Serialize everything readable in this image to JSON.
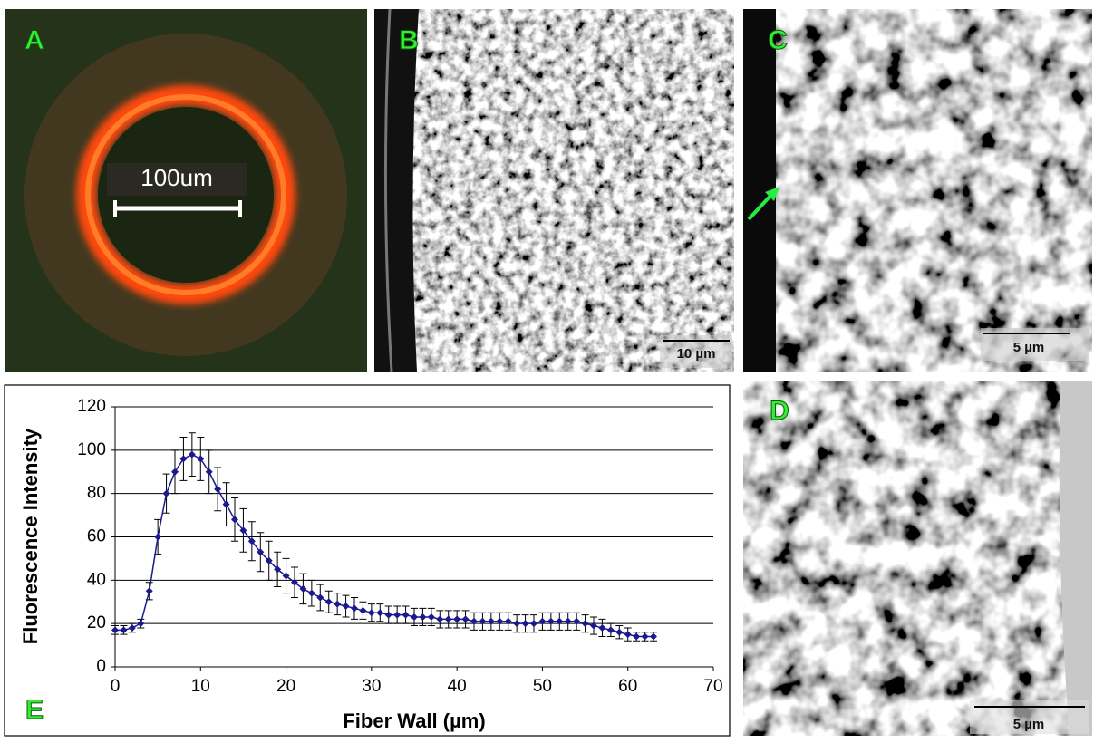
{
  "panels": [
    {
      "label": "A",
      "scale_bar": "100um"
    },
    {
      "label": "B",
      "scale_bar": "10 µm"
    },
    {
      "label": "C",
      "scale_bar": "5 µm"
    },
    {
      "label": "D",
      "scale_bar": "5 µm"
    }
  ],
  "chart_data": {
    "type": "line",
    "panel_label": "E",
    "x_label": "Fiber Wall (µm)",
    "y_label": "Fluorescence Intensity",
    "x": [
      0,
      1,
      2,
      3,
      4,
      5,
      6,
      7,
      8,
      9,
      10,
      11,
      12,
      13,
      14,
      15,
      16,
      17,
      18,
      19,
      20,
      21,
      22,
      23,
      24,
      25,
      26,
      27,
      28,
      29,
      30,
      31,
      32,
      33,
      34,
      35,
      36,
      37,
      38,
      39,
      40,
      41,
      42,
      43,
      44,
      45,
      46,
      47,
      48,
      49,
      50,
      51,
      52,
      53,
      54,
      55,
      56,
      57,
      58,
      59,
      60,
      61,
      62,
      63
    ],
    "values": [
      17,
      17,
      18,
      20,
      35,
      60,
      80,
      90,
      96,
      98,
      96,
      90,
      82,
      75,
      68,
      63,
      58,
      53,
      49,
      45,
      42,
      39,
      36,
      34,
      32,
      30,
      29,
      28,
      27,
      26,
      25,
      25,
      24,
      24,
      24,
      23,
      23,
      23,
      22,
      22,
      22,
      22,
      21,
      21,
      21,
      21,
      21,
      20,
      20,
      20,
      21,
      21,
      21,
      21,
      21,
      20,
      19,
      18,
      17,
      16,
      15,
      14,
      14,
      14
    ],
    "errors": [
      2,
      2,
      2,
      2,
      4,
      8,
      9,
      10,
      10,
      10,
      10,
      10,
      10,
      10,
      10,
      10,
      9,
      9,
      9,
      8,
      8,
      7,
      7,
      6,
      6,
      5,
      5,
      5,
      5,
      4,
      4,
      4,
      4,
      4,
      4,
      4,
      4,
      4,
      4,
      4,
      4,
      4,
      4,
      4,
      4,
      4,
      4,
      4,
      4,
      4,
      4,
      4,
      4,
      4,
      4,
      4,
      4,
      4,
      3,
      3,
      3,
      2,
      2,
      2
    ],
    "color": "#1a1a8c",
    "xlim": [
      0,
      70
    ],
    "xticks": [
      0,
      10,
      20,
      30,
      40,
      50,
      60,
      70
    ],
    "ylim": [
      0,
      120
    ],
    "yticks": [
      0,
      20,
      40,
      60,
      80,
      100,
      120
    ],
    "grid": true
  }
}
